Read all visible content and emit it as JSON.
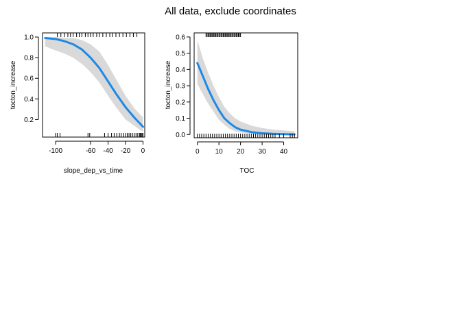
{
  "page": {
    "title": "All data, exclude coordinates"
  },
  "colors": {
    "line": "#1e88e5",
    "band": "#d9d9d9",
    "axis": "#000000",
    "rug": "#000000",
    "background": "#ffffff"
  },
  "chart_data": [
    {
      "type": "line",
      "xlabel": "slope_dep_vs_time",
      "ylabel": "tocton_increase",
      "xlim": [
        -115,
        2
      ],
      "ylim": [
        0.03,
        1.04
      ],
      "xticks": [
        -100,
        -60,
        -40,
        -20,
        0
      ],
      "yticks": [
        0.2,
        0.4,
        0.6,
        0.8,
        1.0
      ],
      "ytick_labels": [
        "0.2",
        "0.4",
        "0.6",
        "0.8",
        "1.0"
      ],
      "series": [
        {
          "x": [
            -112,
            -100,
            -90,
            -80,
            -70,
            -60,
            -50,
            -40,
            -30,
            -20,
            -10,
            0
          ],
          "y": [
            0.99,
            0.98,
            0.96,
            0.93,
            0.88,
            0.8,
            0.7,
            0.57,
            0.44,
            0.32,
            0.22,
            0.13
          ],
          "lower": [
            0.91,
            0.87,
            0.84,
            0.8,
            0.74,
            0.66,
            0.56,
            0.43,
            0.31,
            0.2,
            0.14,
            0.08
          ],
          "upper": [
            1.0,
            1.0,
            0.99,
            0.99,
            0.97,
            0.93,
            0.86,
            0.73,
            0.58,
            0.43,
            0.31,
            0.22
          ]
        }
      ],
      "rug_top": [
        -98,
        -94,
        -90,
        -86,
        -83,
        -80,
        -76,
        -73,
        -70,
        -66,
        -63,
        -60,
        -57,
        -53,
        -50,
        -46,
        -42,
        -38,
        -35,
        -31,
        -27,
        -23,
        -19,
        -15,
        -11,
        -7
      ],
      "rug_bottom": [
        -100,
        -98,
        -95,
        -63,
        -61,
        -44,
        -40,
        -36,
        -33,
        -30,
        -27,
        -25,
        -22,
        -20,
        -18,
        -16,
        -14,
        -12,
        -10,
        -8,
        -6,
        -4,
        -3,
        -2,
        -1,
        0
      ]
    },
    {
      "type": "line",
      "xlabel": "TOC",
      "ylabel": "tocton_increase",
      "xlim": [
        -1.5,
        46.5
      ],
      "ylim": [
        -0.02,
        0.625
      ],
      "xticks": [
        0,
        10,
        20,
        30,
        40
      ],
      "yticks": [
        0.0,
        0.1,
        0.2,
        0.3,
        0.4,
        0.5,
        0.6
      ],
      "ytick_labels": [
        "0.0",
        "0.1",
        "0.2",
        "0.3",
        "0.4",
        "0.5",
        "0.6"
      ],
      "series": [
        {
          "x": [
            0,
            2.5,
            5,
            7.5,
            10,
            12.5,
            15,
            17.5,
            20,
            25,
            30,
            35,
            40,
            45
          ],
          "y": [
            0.44,
            0.36,
            0.28,
            0.21,
            0.15,
            0.1,
            0.07,
            0.045,
            0.03,
            0.015,
            0.008,
            0.004,
            0.002,
            0.001
          ],
          "lower": [
            0.31,
            0.25,
            0.19,
            0.14,
            0.09,
            0.06,
            0.035,
            0.02,
            0.012,
            0.004,
            0.001,
            0.0,
            0.0,
            0.0
          ],
          "upper": [
            0.58,
            0.47,
            0.38,
            0.3,
            0.23,
            0.17,
            0.13,
            0.1,
            0.08,
            0.055,
            0.04,
            0.03,
            0.025,
            0.02
          ]
        }
      ],
      "rug_top": [
        4,
        4.5,
        5,
        5.5,
        6,
        6.5,
        7,
        7.5,
        8,
        8.5,
        9,
        9.5,
        10,
        10.5,
        11,
        11.5,
        12,
        12.5,
        13,
        13.5,
        14,
        14.5,
        15,
        15.5,
        16,
        16.5,
        17,
        17.5,
        18,
        18.5,
        19,
        19.5,
        20
      ],
      "rug_bottom": [
        0,
        1,
        2,
        3,
        4,
        5,
        6,
        7,
        8,
        9,
        10,
        11,
        12,
        13,
        14,
        15,
        16,
        17,
        18,
        19,
        20,
        21,
        22,
        23,
        24,
        25,
        26,
        27,
        28,
        29,
        30,
        31,
        32,
        33,
        34,
        35,
        36,
        38,
        40,
        43,
        44,
        45
      ]
    }
  ]
}
